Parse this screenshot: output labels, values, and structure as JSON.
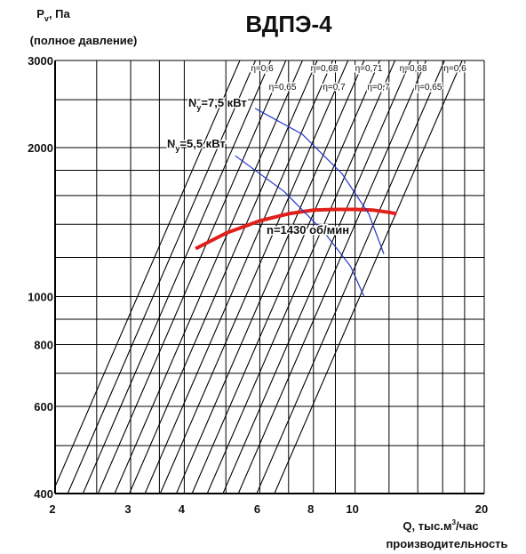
{
  "chart_data": {
    "type": "line",
    "title": "ВДПЭ-4",
    "y_label_symbol": "P",
    "y_label_subscript": "v",
    "y_label_unit": ", Па",
    "y_label_line2": "(полное давление)",
    "x_label_main": "Q, тыс.м",
    "x_label_superscript": "3",
    "x_label_unit": "/час",
    "x_label_line2": "производительность",
    "log_x": true,
    "log_y": true,
    "grid": true,
    "xlim": [
      2,
      20
    ],
    "ylim": [
      400,
      3000
    ],
    "xticks": [
      2,
      3,
      4,
      6,
      8,
      10,
      20
    ],
    "yticks": [
      400,
      600,
      800,
      1000,
      2000,
      3000
    ],
    "x_grid": [
      2.5,
      3.5,
      5,
      7,
      9,
      12,
      14,
      16,
      18
    ],
    "y_grid": [
      500,
      700,
      900,
      1200,
      1400,
      1600,
      1800,
      2500
    ],
    "resistance_lines_q_at_ylim_top": [
      5.39,
      5.86,
      6.36,
      6.9,
      7.54,
      8.16,
      8.87,
      9.63,
      10.5,
      11.42,
      12.39,
      13.48,
      14.64,
      16.16,
      17.77
    ],
    "efficiency_labels": [
      "η=0,6",
      "η=0,68",
      "η=0,71",
      "η=0,68",
      "η=0,6",
      "η=0,65",
      "η=0,7",
      "η=0,7",
      "η=0,65"
    ],
    "series": [
      {
        "name": "n=1430 об/мин",
        "color": "#e0201b",
        "x": [
          4.25,
          5,
          6,
          7,
          8,
          9,
          10,
          11,
          12,
          12.5
        ],
        "values": [
          1250,
          1343,
          1423,
          1470,
          1496,
          1500,
          1500,
          1496,
          1480,
          1470
        ]
      },
      {
        "label": {
          "symbol": "N",
          "subscript": "у",
          "text": "=7,5 кВт"
        },
        "color": "#2233cc",
        "x": [
          5.85,
          7.53,
          9.33,
          10.76,
          11.67
        ],
        "values": [
          2400,
          2130,
          1770,
          1470,
          1220
        ]
      },
      {
        "label": {
          "symbol": "N",
          "subscript": "у",
          "text": "=5,5 кВт"
        },
        "color": "#2233cc",
        "x": [
          5.26,
          6.84,
          8.47,
          9.77,
          10.5
        ],
        "values": [
          1925,
          1630,
          1350,
          1150,
          1000
        ]
      }
    ]
  }
}
